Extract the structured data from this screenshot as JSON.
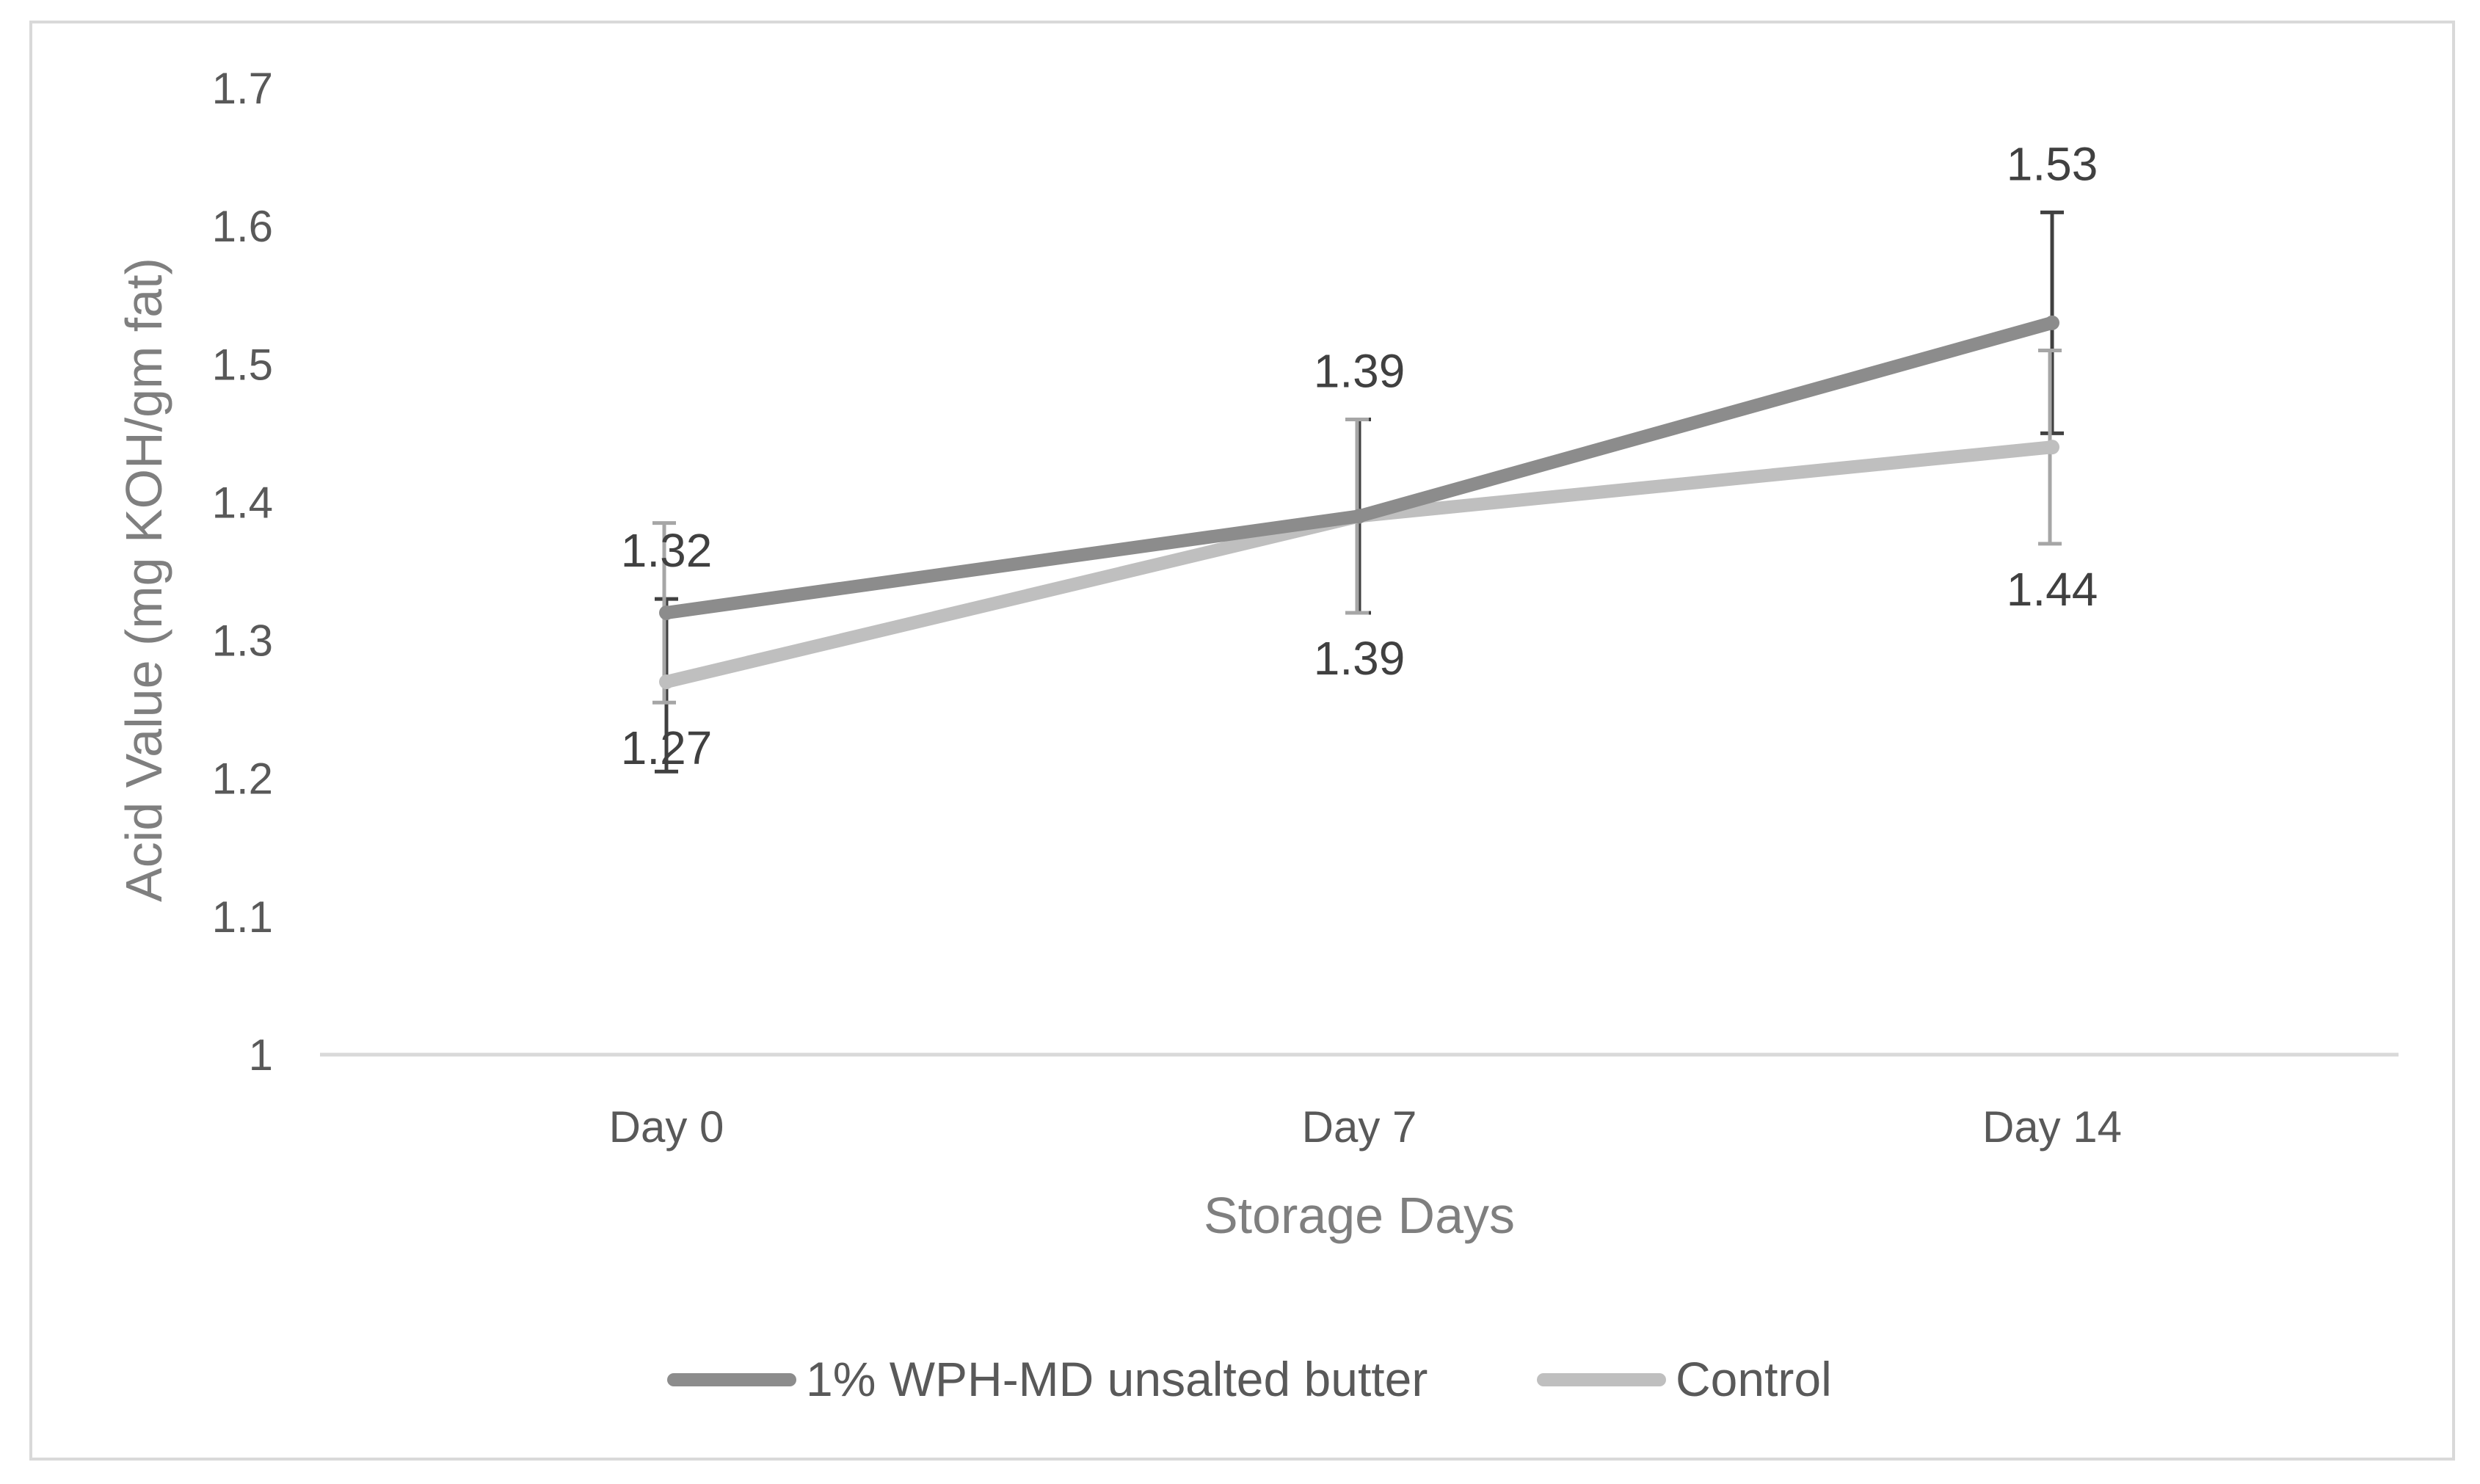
{
  "chart_data": {
    "type": "line",
    "title": "",
    "xlabel": "Storage Days",
    "ylabel": "Acid Value (mg KOH/gm fat)",
    "categories": [
      "Day 0",
      "Day 7",
      "Day 14"
    ],
    "ylim": [
      1,
      1.7
    ],
    "yticks": [
      "1",
      "1.1",
      "1.2",
      "1.3",
      "1.4",
      "1.5",
      "1.6",
      "1.7"
    ],
    "grid": false,
    "legend_position": "bottom",
    "series": [
      {
        "name": "1% WPH-MD unsalted butter",
        "color": "#8c8c8c",
        "values": [
          1.32,
          1.39,
          1.53
        ],
        "labels": [
          "1.32",
          "1.39",
          "1.53"
        ],
        "error_low": [
          1.205,
          1.32,
          1.45
        ],
        "error_high": [
          1.33,
          1.46,
          1.61
        ],
        "label_position": "above"
      },
      {
        "name": "Control",
        "color": "#bfbfbf",
        "values": [
          1.27,
          1.39,
          1.44
        ],
        "labels": [
          "1.27",
          "1.39",
          "1.44"
        ],
        "error_low": [
          1.255,
          1.32,
          1.37
        ],
        "error_high": [
          1.385,
          1.46,
          1.51
        ],
        "label_position": "below"
      }
    ]
  }
}
